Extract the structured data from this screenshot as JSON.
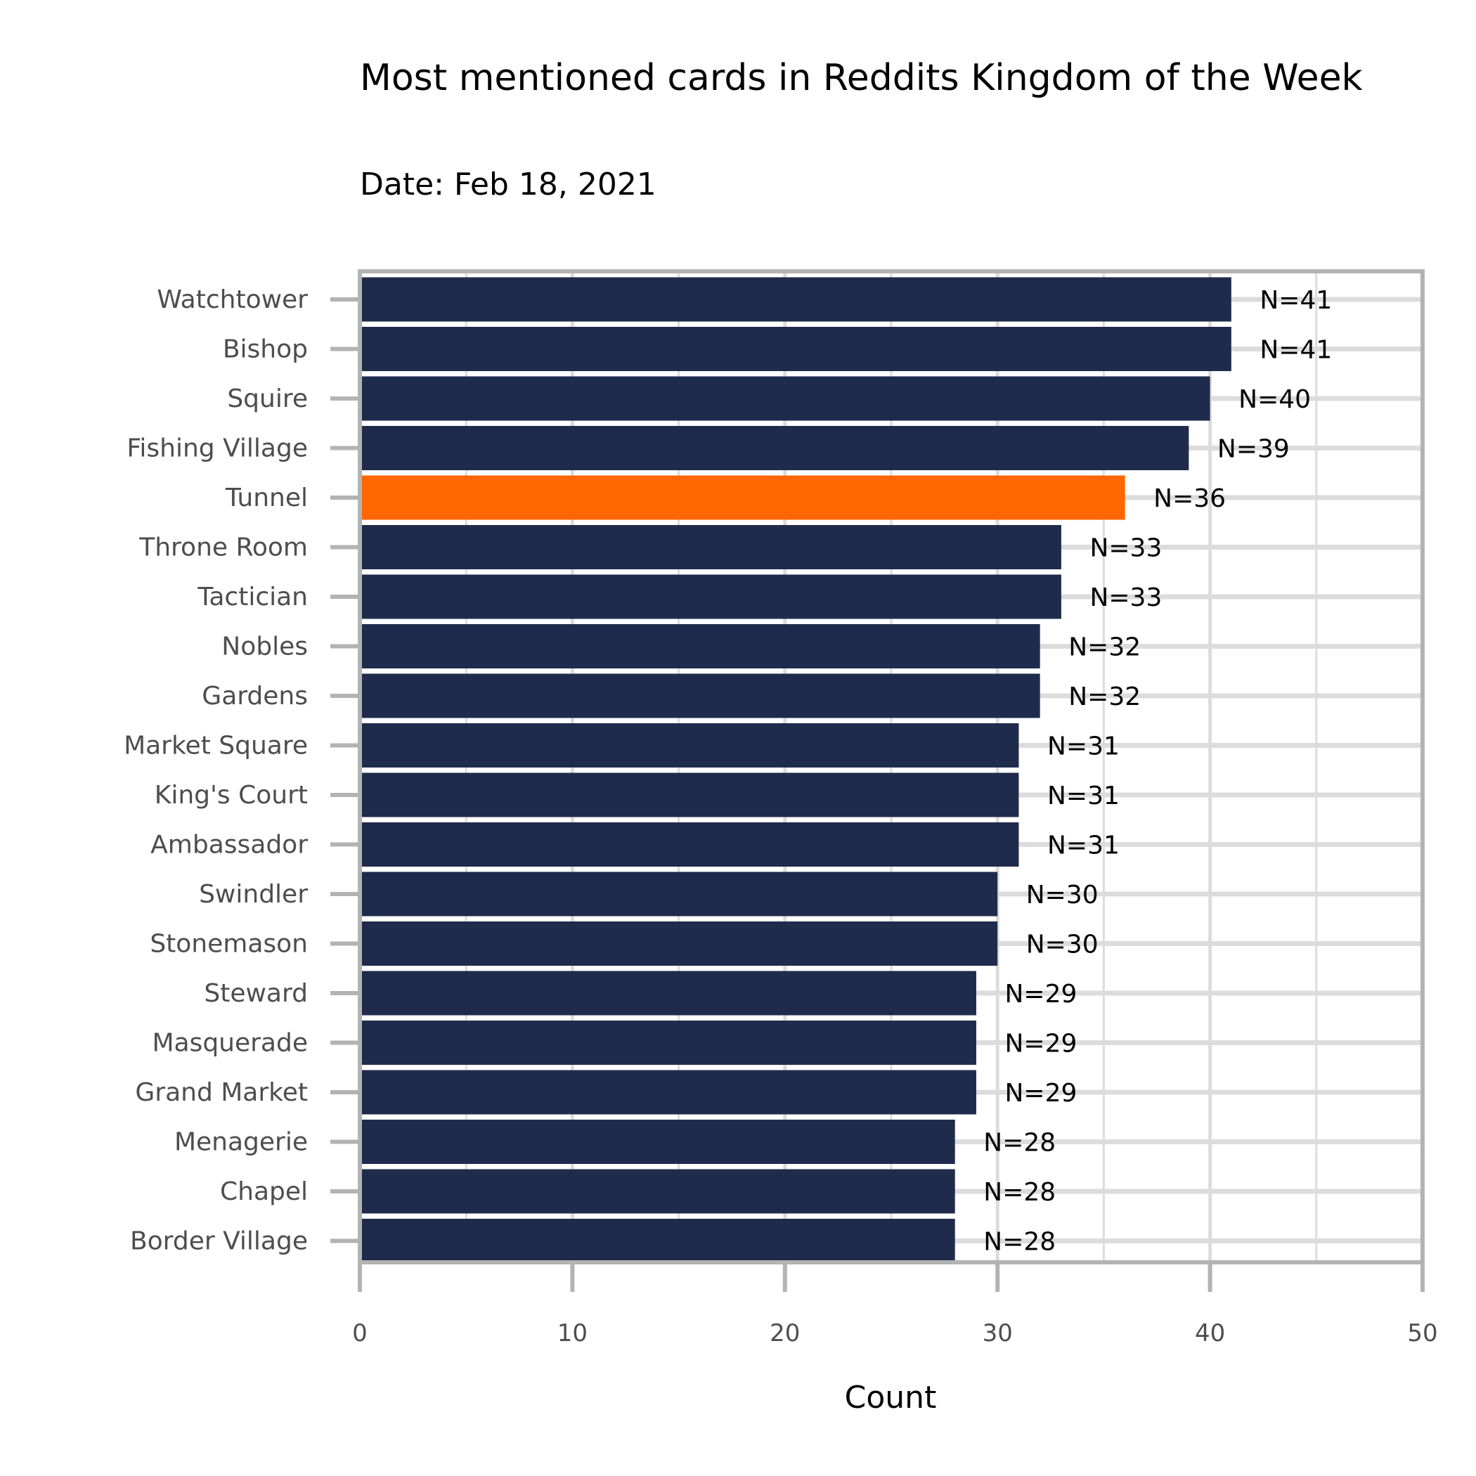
{
  "chart_data": {
    "type": "bar",
    "orientation": "horizontal",
    "title": "Most mentioned cards in Reddits Kingdom of the Week",
    "subtitle": "Date: Feb 18, 2021",
    "xlabel": "Count",
    "ylabel": "",
    "xlim": [
      0,
      50
    ],
    "x_ticks": [
      0,
      10,
      20,
      30,
      40,
      50
    ],
    "grid": true,
    "legend": "none",
    "categories": [
      "Watchtower",
      "Bishop",
      "Squire",
      "Fishing Village",
      "Tunnel",
      "Throne Room",
      "Tactician",
      "Nobles",
      "Gardens",
      "Market Square",
      "King's Court",
      "Ambassador",
      "Swindler",
      "Stonemason",
      "Steward",
      "Masquerade",
      "Grand Market",
      "Menagerie",
      "Chapel",
      "Border Village"
    ],
    "values": [
      41,
      41,
      40,
      39,
      36,
      33,
      33,
      32,
      32,
      31,
      31,
      31,
      30,
      30,
      29,
      29,
      29,
      28,
      28,
      28
    ],
    "data_labels": [
      "N=41",
      "N=41",
      "N=40",
      "N=39",
      "N=36",
      "N=33",
      "N=33",
      "N=32",
      "N=32",
      "N=31",
      "N=31",
      "N=31",
      "N=30",
      "N=30",
      "N=29",
      "N=29",
      "N=29",
      "N=28",
      "N=28",
      "N=28"
    ],
    "highlight_category": "Tunnel",
    "colors": {
      "bar": "#1f2b4c",
      "highlight": "#ff6600",
      "grid": "#dcdcdc",
      "frame": "#b3b3b3",
      "tick_text": "#4d4d4d",
      "label_text": "#000000"
    }
  }
}
